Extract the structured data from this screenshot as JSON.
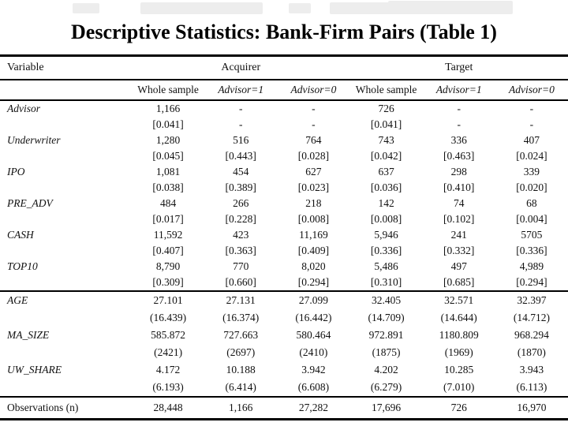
{
  "title": "Descriptive Statistics: Bank-Firm Pairs (Table 1)",
  "table": {
    "variable_header": "Variable",
    "group_headers": [
      "Acquirer",
      "Target"
    ],
    "subheaders": [
      "Whole sample",
      "Advisor=1",
      "Advisor=0",
      "Whole sample",
      "Advisor=1",
      "Advisor=0"
    ],
    "rows": [
      {
        "label": "Advisor",
        "values": [
          "1,166",
          "-",
          "-",
          "726",
          "-",
          "-"
        ],
        "stats": [
          "[0.041]",
          "-",
          "-",
          "[0.041]",
          "-",
          "-"
        ]
      },
      {
        "label": "Underwriter",
        "values": [
          "1,280",
          "516",
          "764",
          "743",
          "336",
          "407"
        ],
        "stats": [
          "[0.045]",
          "[0.443]",
          "[0.028]",
          "[0.042]",
          "[0.463]",
          "[0.024]"
        ]
      },
      {
        "label": "IPO",
        "values": [
          "1,081",
          "454",
          "627",
          "637",
          "298",
          "339"
        ],
        "stats": [
          "[0.038]",
          "[0.389]",
          "[0.023]",
          "[0.036]",
          "[0.410]",
          "[0.020]"
        ]
      },
      {
        "label": "PRE_ADV",
        "values": [
          "484",
          "266",
          "218",
          "142",
          "74",
          "68"
        ],
        "stats": [
          "[0.017]",
          "[0.228]",
          "[0.008]",
          "[0.008]",
          "[0.102]",
          "[0.004]"
        ]
      },
      {
        "label": "CASH",
        "values": [
          "11,592",
          "423",
          "11,169",
          "5,946",
          "241",
          "5705"
        ],
        "stats": [
          "[0.407]",
          "[0.363]",
          "[0.409]",
          "[0.336]",
          "[0.332]",
          "[0.336]"
        ]
      },
      {
        "label": "TOP10",
        "values": [
          "8,790",
          "770",
          "8,020",
          "5,486",
          "497",
          "4,989"
        ],
        "stats": [
          "[0.309]",
          "[0.660]",
          "[0.294]",
          "[0.310]",
          "[0.685]",
          "[0.294]"
        ]
      }
    ],
    "rows2": [
      {
        "label": "AGE",
        "values": [
          "27.101",
          "27.131",
          "27.099",
          "32.405",
          "32.571",
          "32.397"
        ],
        "stats": [
          "(16.439)",
          "(16.374)",
          "(16.442)",
          "(14.709)",
          "(14.644)",
          "(14.712)"
        ]
      },
      {
        "label": "MA_SIZE",
        "values": [
          "585.872",
          "727.663",
          "580.464",
          "972.891",
          "1180.809",
          "968.294"
        ],
        "stats": [
          "(2421)",
          "(2697)",
          "(2410)",
          "(1875)",
          "(1969)",
          "(1870)"
        ]
      },
      {
        "label": "UW_SHARE",
        "values": [
          "4.172",
          "10.188",
          "3.942",
          "4.202",
          "10.285",
          "3.943"
        ],
        "stats": [
          "(6.193)",
          "(6.414)",
          "(6.608)",
          "(6.279)",
          "(7.010)",
          "(6.113)"
        ]
      }
    ],
    "footer": {
      "label": "Observations (n)",
      "values": [
        "28,448",
        "1,166",
        "27,282",
        "17,696",
        "726",
        "16,970"
      ]
    }
  }
}
